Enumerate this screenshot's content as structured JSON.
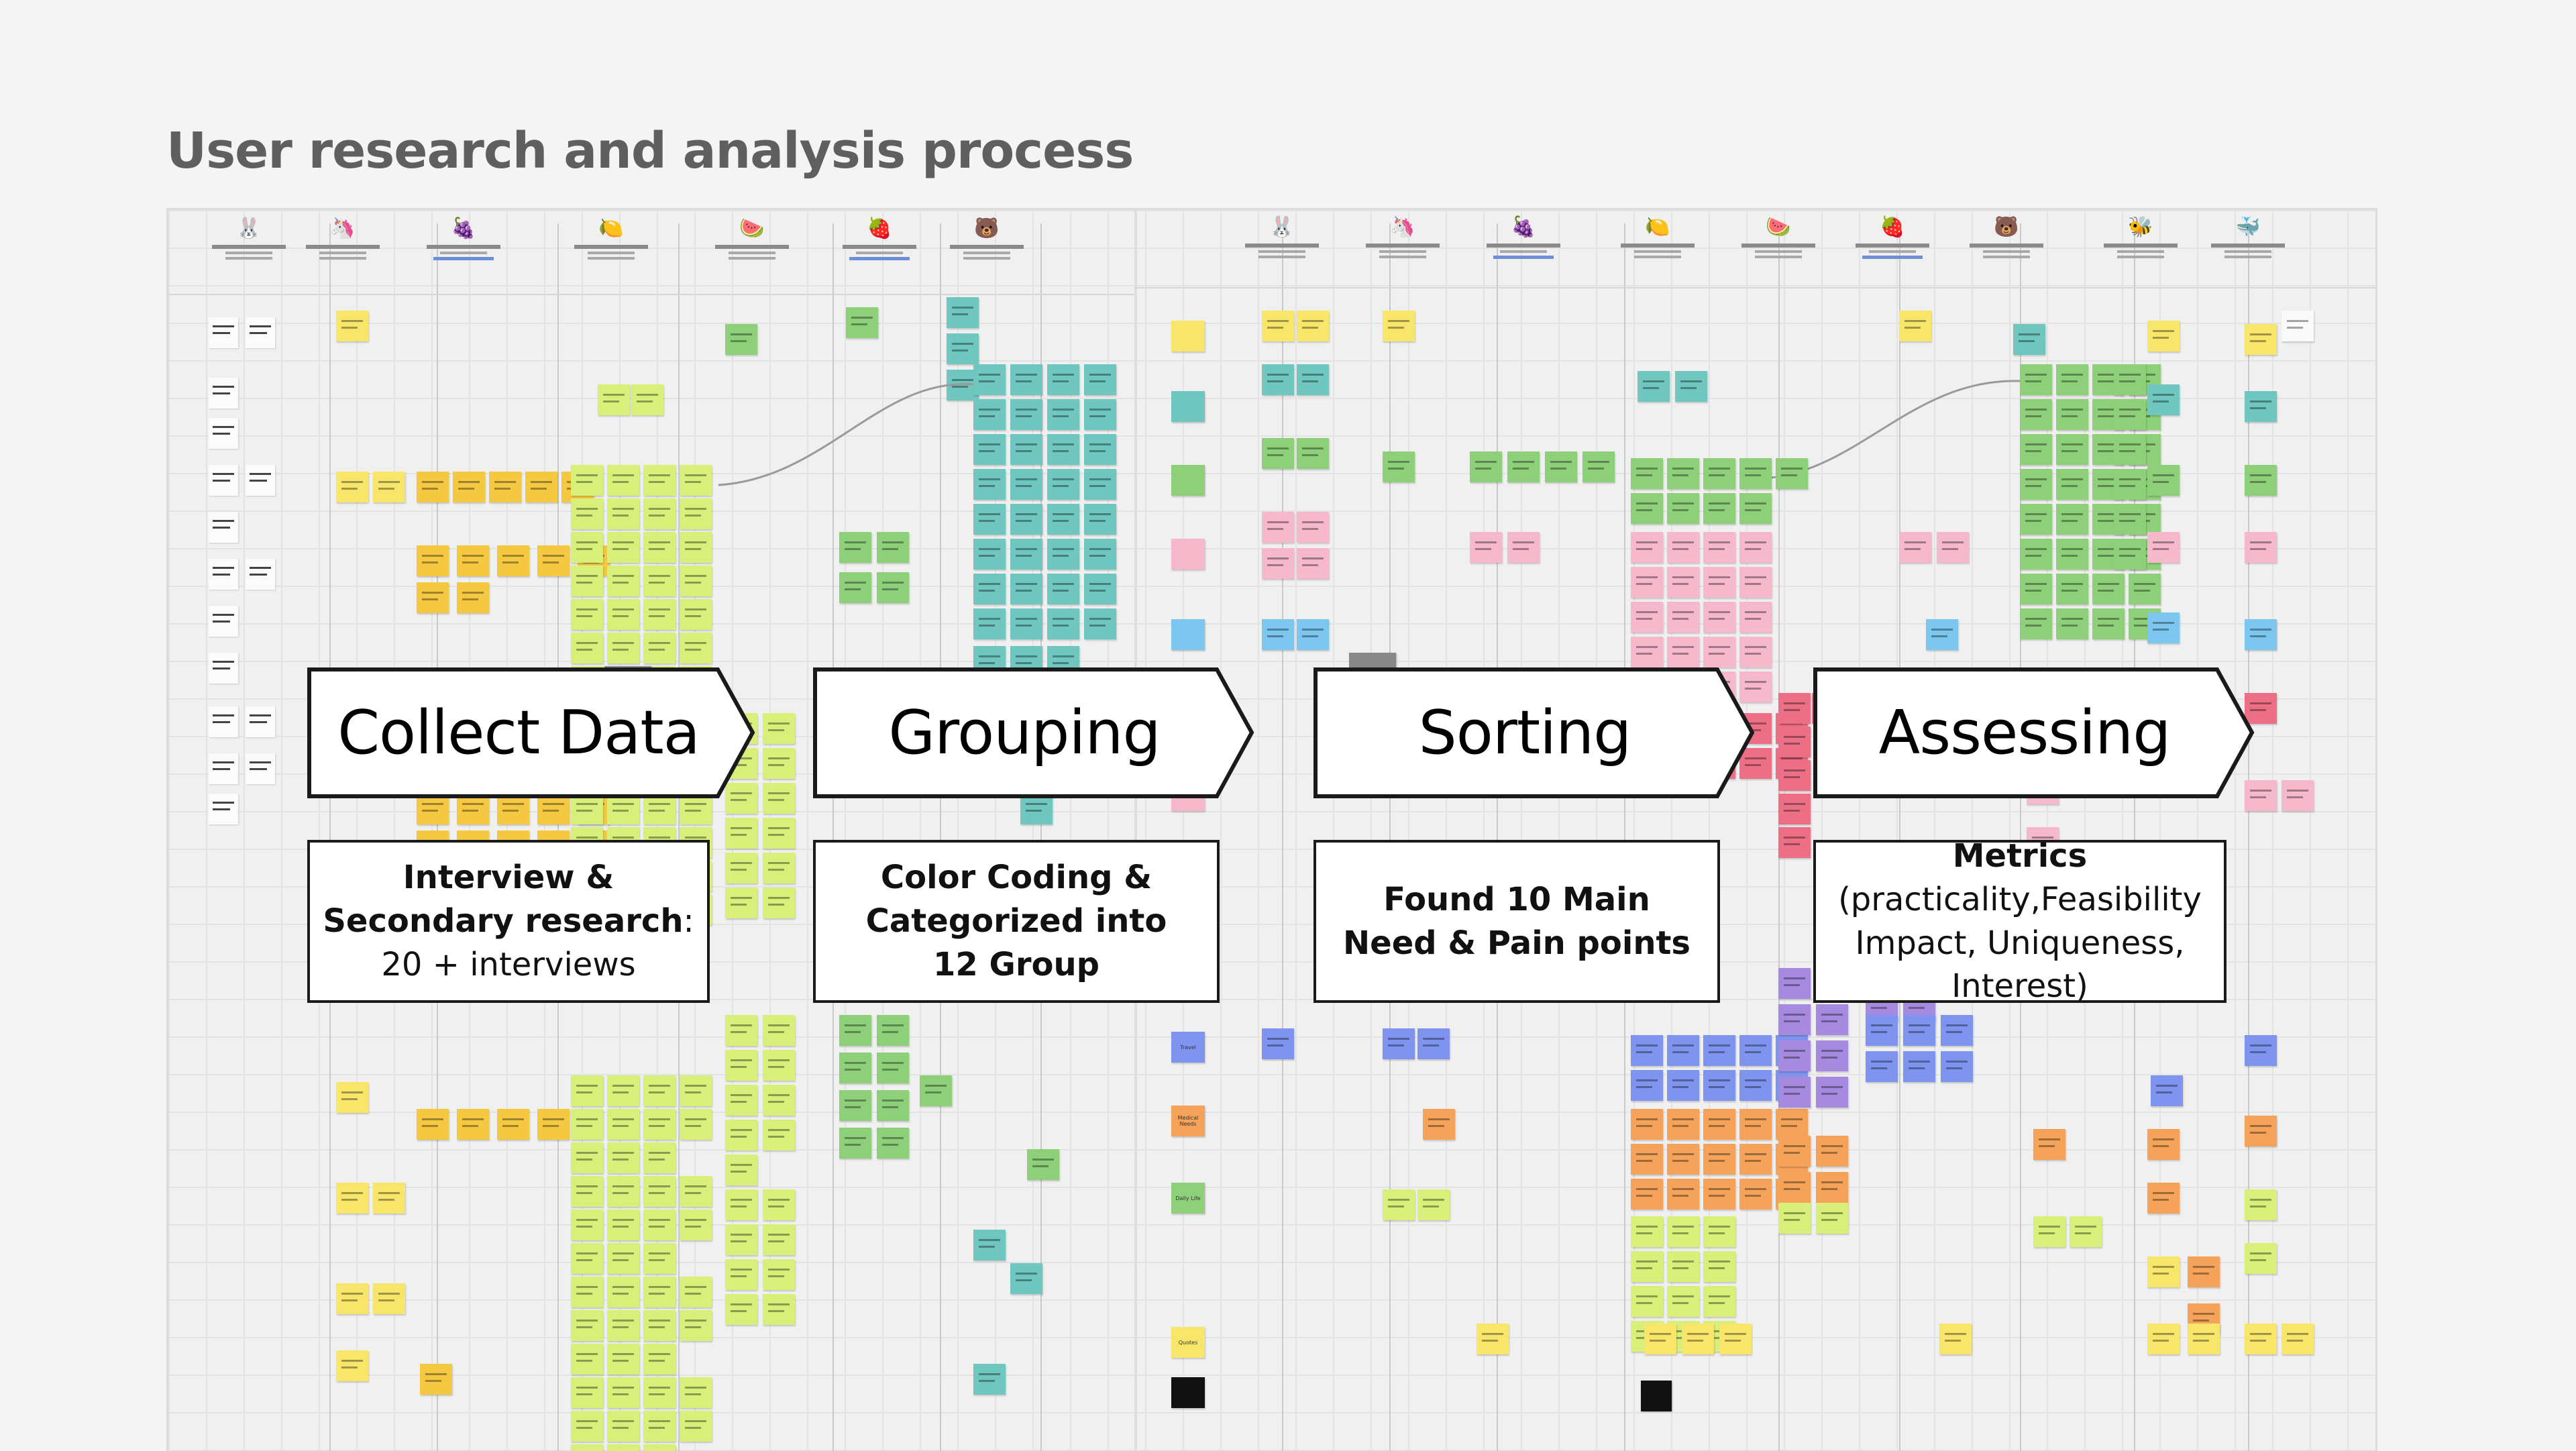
{
  "title": "User research and analysis process",
  "stages": [
    {
      "label": "Collect Data",
      "detail_bold": "Interview &",
      "detail_bold_2": "Secondary research",
      "detail_suffix": ":",
      "detail_normal": "20 + interviews"
    },
    {
      "label": "Grouping",
      "detail_bold": "Color Coding &",
      "detail_bold_2": "Categorized into",
      "detail_bold_3": "12 Group"
    },
    {
      "label": "Sorting",
      "detail_bold": "Found 10 Main",
      "detail_bold_2": "Need & Pain points"
    },
    {
      "label": "Assessing",
      "detail_bold": "Metrics",
      "detail_normal": "(practicality,Feasibility",
      "detail_normal_2": "Impact, Uniqueness, Interest)"
    }
  ],
  "personas": [
    "rabbit-emoji",
    "unicorn-emoji",
    "grapes-emoji",
    "lemon-emoji",
    "watermelon-emoji",
    "strawberry-emoji",
    "bear-emoji",
    "bee-emoji",
    "whale-emoji"
  ],
  "category_labels": {
    "left": [
      "Travel",
      "Medical Needs",
      "Daily Life",
      "Quotes"
    ],
    "right": [
      "Travel",
      "Medical Needs",
      "Daily Life",
      "Quotes"
    ]
  },
  "colors": {
    "yellow": "#f7e66a",
    "orange_yellow": "#f5c842",
    "lime": "#d8f07a",
    "green": "#8ed07a",
    "teal": "#6fc7bf",
    "blue": "#7cc6f0",
    "pink": "#f6b9cc",
    "red": "#ec6f86",
    "purple": "#a68ae0",
    "indigo": "#7f94ee",
    "orange": "#f5a35a",
    "chevron_fill": "#ffffff",
    "chevron_border": "#1a1a1a"
  }
}
